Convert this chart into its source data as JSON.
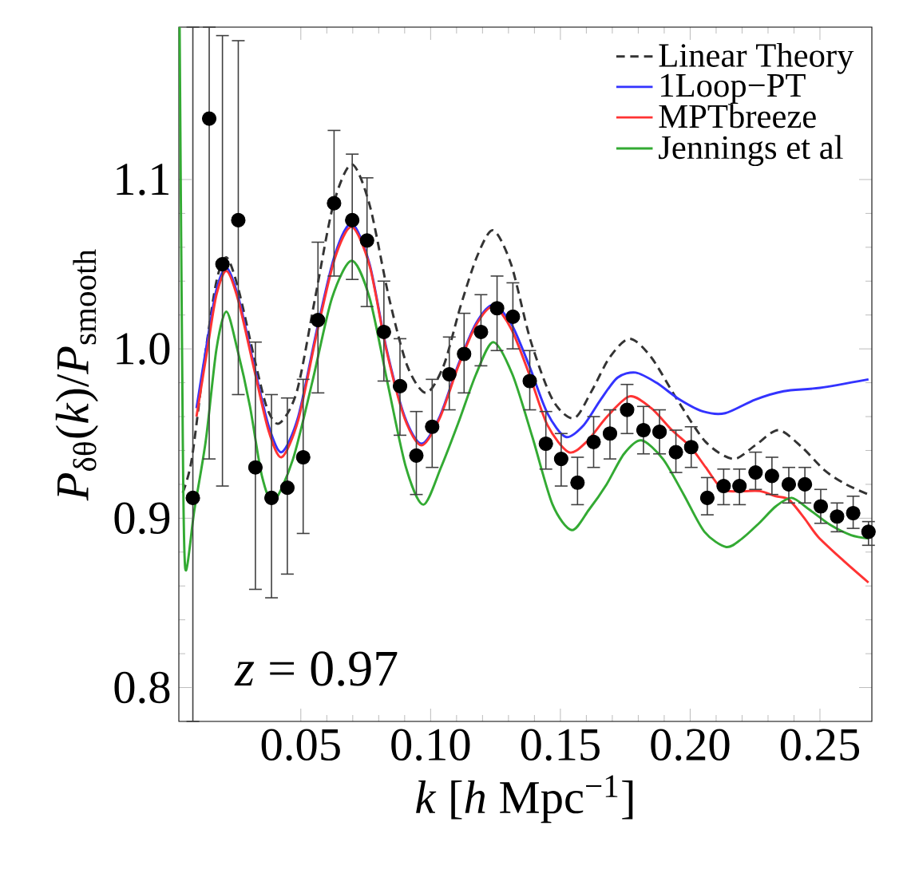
{
  "chart_data": {
    "type": "line",
    "xlabel": "*k* [*h* Mpc$^{−1}$]",
    "ylabel": "*P*$_{δθ}$(*k*)/*P*$_{smooth}$",
    "xlim": [
      0.003,
      0.27
    ],
    "ylim": [
      0.78,
      1.19
    ],
    "xticks": [
      {
        "value": 0.05,
        "label": "0.05"
      },
      {
        "value": 0.1,
        "label": "0.10"
      },
      {
        "value": 0.15,
        "label": "0.15"
      },
      {
        "value": 0.2,
        "label": "0.20"
      },
      {
        "value": 0.25,
        "label": "0.25"
      }
    ],
    "yticks": [
      {
        "value": 0.8,
        "label": "0.8"
      },
      {
        "value": 0.9,
        "label": "0.9"
      },
      {
        "value": 1.0,
        "label": "1.0"
      },
      {
        "value": 1.1,
        "label": "1.1"
      }
    ],
    "legend": "top right",
    "annotations": [
      "*z* = 0.97"
    ],
    "series": [
      {
        "name": "Linear Theory",
        "type": "line",
        "color": "#333333",
        "line_style": "dashed",
        "x": [
          0.0045,
          0.008,
          0.013,
          0.0175,
          0.0214,
          0.026,
          0.032,
          0.037,
          0.0417,
          0.0485,
          0.0555,
          0.0625,
          0.0696,
          0.0765,
          0.084,
          0.091,
          0.0982,
          0.105,
          0.1115,
          0.118,
          0.1241,
          0.131,
          0.1385,
          0.147,
          0.1552,
          0.162,
          0.169,
          0.1767,
          0.185,
          0.195,
          0.206,
          0.2166,
          0.225,
          0.234,
          0.243,
          0.252,
          0.26,
          0.2687
        ],
        "values": [
          0.915,
          0.935,
          0.995,
          1.04,
          1.054,
          1.035,
          0.995,
          0.965,
          0.956,
          0.975,
          1.03,
          1.085,
          1.109,
          1.085,
          1.03,
          0.99,
          0.974,
          0.99,
          1.025,
          1.055,
          1.07,
          1.05,
          1.005,
          0.97,
          0.959,
          0.975,
          0.995,
          1.006,
          0.995,
          0.97,
          0.945,
          0.935,
          0.943,
          0.952,
          0.942,
          0.928,
          0.92,
          0.914
        ]
      },
      {
        "name": "1Loop−PT",
        "type": "line",
        "color": "#3333ff",
        "line_style": "solid",
        "x": [
          0.0098,
          0.014,
          0.0175,
          0.0214,
          0.026,
          0.032,
          0.0375,
          0.0426,
          0.049,
          0.056,
          0.063,
          0.0696,
          0.0765,
          0.083,
          0.09,
          0.0965,
          0.1035,
          0.1105,
          0.1175,
          0.1241,
          0.131,
          0.138,
          0.145,
          0.1521,
          0.159,
          0.1655,
          0.172,
          0.179,
          0.187,
          0.196,
          0.205,
          0.2135,
          0.225,
          0.236,
          0.25,
          0.2687
        ],
        "values": [
          0.965,
          1.005,
          1.035,
          1.048,
          1.03,
          0.99,
          0.955,
          0.939,
          0.96,
          1.01,
          1.055,
          1.074,
          1.05,
          1.0,
          0.96,
          0.944,
          0.96,
          0.99,
          1.015,
          1.026,
          1.015,
          0.99,
          0.962,
          0.948,
          0.955,
          0.97,
          0.983,
          0.986,
          0.98,
          0.97,
          0.963,
          0.962,
          0.97,
          0.975,
          0.977,
          0.982
        ]
      },
      {
        "name": "MPTbreeze",
        "type": "line",
        "color": "#ff3333",
        "line_style": "solid",
        "x": [
          0.0098,
          0.014,
          0.0175,
          0.0214,
          0.026,
          0.032,
          0.0375,
          0.0426,
          0.049,
          0.056,
          0.063,
          0.0696,
          0.0765,
          0.083,
          0.09,
          0.0965,
          0.1035,
          0.1105,
          0.1175,
          0.1241,
          0.131,
          0.138,
          0.145,
          0.1532,
          0.16,
          0.168,
          0.1767,
          0.185,
          0.193,
          0.2002,
          0.206,
          0.2125,
          0.22,
          0.2268,
          0.233,
          0.238,
          0.244,
          0.2493,
          0.259,
          0.2687
        ],
        "values": [
          0.96,
          1.0,
          1.032,
          1.046,
          1.028,
          0.988,
          0.952,
          0.936,
          0.958,
          1.008,
          1.053,
          1.072,
          1.049,
          0.999,
          0.959,
          0.943,
          0.959,
          0.989,
          1.014,
          1.025,
          1.012,
          0.985,
          0.955,
          0.939,
          0.945,
          0.96,
          0.972,
          0.965,
          0.952,
          0.942,
          0.93,
          0.917,
          0.916,
          0.916,
          0.913,
          0.911,
          0.9,
          0.889,
          0.875,
          0.862
        ]
      },
      {
        "name": "Jennings et al",
        "type": "line",
        "color": "#33aa33",
        "line_style": "solid",
        "x": [
          0.0033,
          0.0045,
          0.0055,
          0.009,
          0.0134,
          0.0175,
          0.0213,
          0.0255,
          0.0304,
          0.035,
          0.0395,
          0.047,
          0.0545,
          0.062,
          0.0696,
          0.0765,
          0.0834,
          0.0905,
          0.0972,
          0.104,
          0.1106,
          0.1175,
          0.1241,
          0.1315,
          0.1392,
          0.147,
          0.1544,
          0.161,
          0.1678,
          0.1745,
          0.1812,
          0.1895,
          0.1975,
          0.2055,
          0.2139,
          0.22,
          0.2265,
          0.233,
          0.2391,
          0.246,
          0.254,
          0.262,
          0.2687
        ],
        "values": [
          1.19,
          0.95,
          0.87,
          0.905,
          0.946,
          1.0,
          1.022,
          1.0,
          0.966,
          0.925,
          0.91,
          0.935,
          0.981,
          1.03,
          1.052,
          1.03,
          0.98,
          0.93,
          0.908,
          0.93,
          0.956,
          0.985,
          1.004,
          0.985,
          0.948,
          0.908,
          0.893,
          0.905,
          0.92,
          0.938,
          0.946,
          0.935,
          0.914,
          0.892,
          0.883,
          0.888,
          0.897,
          0.907,
          0.912,
          0.905,
          0.896,
          0.89,
          0.888
        ]
      },
      {
        "type": "scatter",
        "color": "#000000",
        "marker": "circle",
        "x": [
          0.0084,
          0.0147,
          0.0198,
          0.0259,
          0.0325,
          0.0387,
          0.0448,
          0.0509,
          0.0566,
          0.0628,
          0.0698,
          0.0755,
          0.082,
          0.0882,
          0.0945,
          0.1006,
          0.1072,
          0.1129,
          0.1194,
          0.1256,
          0.1317,
          0.1382,
          0.1444,
          0.1503,
          0.1566,
          0.1628,
          0.1691,
          0.1757,
          0.182,
          0.1882,
          0.1945,
          0.2004,
          0.2066,
          0.2129,
          0.219,
          0.2252,
          0.2315,
          0.238,
          0.2442,
          0.2503,
          0.2566,
          0.2628,
          0.2687
        ],
        "values": [
          0.912,
          1.136,
          1.05,
          1.076,
          0.93,
          0.912,
          0.918,
          0.936,
          1.017,
          1.086,
          1.076,
          1.064,
          1.01,
          0.978,
          0.937,
          0.954,
          0.985,
          0.997,
          1.01,
          1.024,
          1.019,
          0.981,
          0.944,
          0.935,
          0.921,
          0.945,
          0.95,
          0.964,
          0.952,
          0.951,
          0.939,
          0.942,
          0.912,
          0.919,
          0.919,
          0.927,
          0.925,
          0.92,
          0.92,
          0.907,
          0.901,
          0.903,
          0.892
        ],
        "errors": [
          [
            0.78,
            1.19
          ],
          [
            0.935,
            1.19
          ],
          [
            0.919,
            1.185
          ],
          [
            0.973,
            1.182
          ],
          [
            0.858,
            1.004
          ],
          [
            0.853,
            0.973
          ],
          [
            0.867,
            0.971
          ],
          [
            0.891,
            0.982
          ],
          [
            0.974,
            1.063
          ],
          [
            1.043,
            1.129
          ],
          [
            1.041,
            1.115
          ],
          [
            1.025,
            1.101
          ],
          [
            0.981,
            1.04
          ],
          [
            0.949,
            1.006
          ],
          [
            0.914,
            0.963
          ],
          [
            0.93,
            0.982
          ],
          [
            0.964,
            1.007
          ],
          [
            0.974,
            1.021
          ],
          [
            0.99,
            1.032
          ],
          [
            0.999,
            1.043
          ],
          [
            1.0,
            1.039
          ],
          [
            0.964,
            0.999
          ],
          [
            0.929,
            0.963
          ],
          [
            0.919,
            0.95
          ],
          [
            0.908,
            0.936
          ],
          [
            0.93,
            0.96
          ],
          [
            0.935,
            0.964
          ],
          [
            0.95,
            0.979
          ],
          [
            0.938,
            0.966
          ],
          [
            0.938,
            0.964
          ],
          [
            0.927,
            0.952
          ],
          [
            0.93,
            0.954
          ],
          [
            0.902,
            0.924
          ],
          [
            0.908,
            0.929
          ],
          [
            0.908,
            0.929
          ],
          [
            0.917,
            0.939
          ],
          [
            0.914,
            0.936
          ],
          [
            0.909,
            0.93
          ],
          [
            0.909,
            0.93
          ],
          [
            0.897,
            0.917
          ],
          [
            0.892,
            0.909
          ],
          [
            0.894,
            0.913
          ],
          [
            0.884,
            0.898
          ]
        ]
      }
    ]
  }
}
